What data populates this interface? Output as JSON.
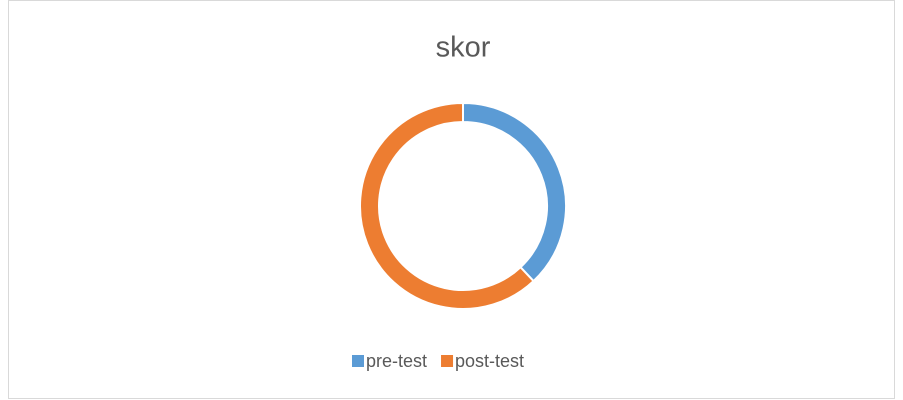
{
  "chart_data": {
    "type": "donut",
    "title": "skor",
    "categories": [
      "pre-test",
      "post-test"
    ],
    "values": [
      38,
      62
    ],
    "colors": [
      "#5b9bd5",
      "#ed7d31"
    ],
    "legend": "bottom"
  }
}
